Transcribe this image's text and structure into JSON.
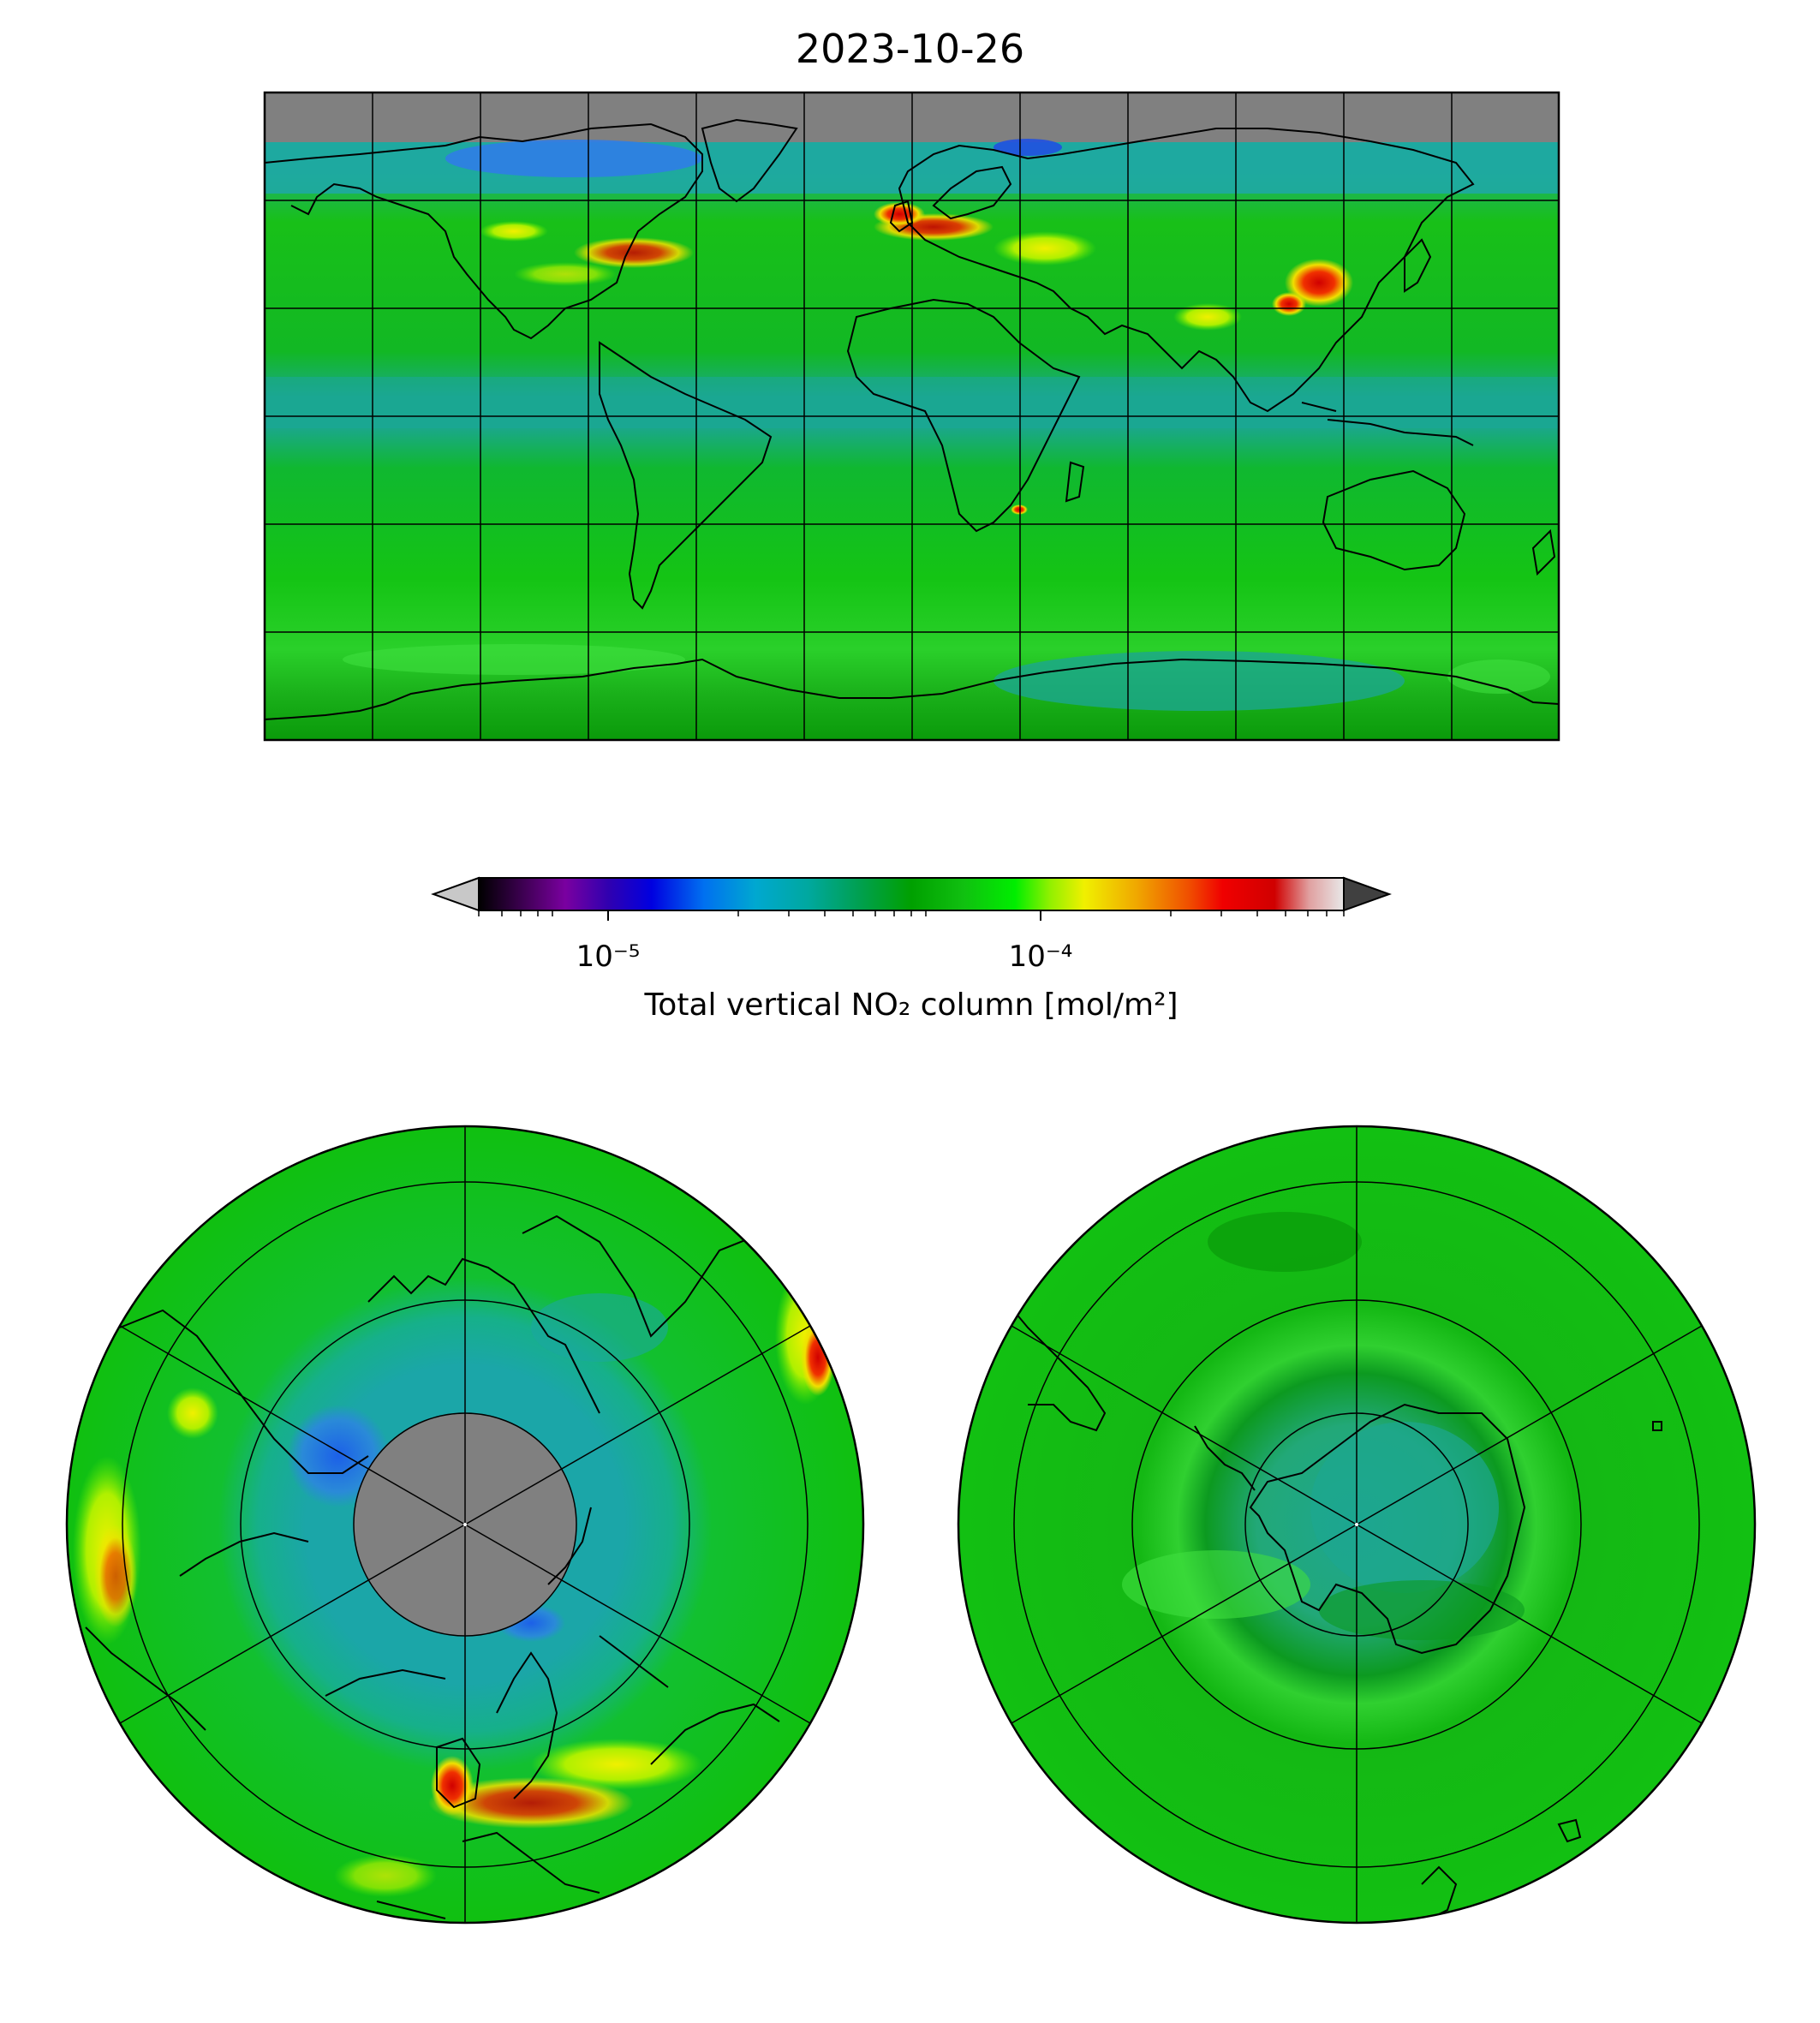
{
  "figure": {
    "title": "2023-10-26"
  },
  "colorbar": {
    "label": "Total vertical NO₂ column [mol/m²]",
    "scale": "log",
    "range": [
      5e-06,
      0.0005
    ],
    "extend": "both",
    "major_ticks": [
      {
        "value": 1e-05,
        "label": "10⁻⁵"
      },
      {
        "value": 0.0001,
        "label": "10⁻⁴"
      }
    ],
    "colormap_stops": [
      "#000000",
      "#5a006e",
      "#8000a0",
      "#2a00b0",
      "#0000e0",
      "#0060f0",
      "#00a0d0",
      "#00a8a0",
      "#00a050",
      "#00a000",
      "#20c000",
      "#00f000",
      "#90f000",
      "#f0f000",
      "#f0a000",
      "#f04000",
      "#f00000",
      "#d00000",
      "#e0a0a0",
      "#e8e8e8"
    ],
    "under_color": "#c8c8c8",
    "over_color": "#404040"
  },
  "maps": [
    {
      "name": "global",
      "projection": "equirectangular",
      "graticule_lon_step_deg": 30,
      "graticule_lat_step_deg": 30,
      "no_data_color": "#808080"
    },
    {
      "name": "north-pole",
      "projection": "north-polar-orthographic",
      "no_data_color": "#808080"
    },
    {
      "name": "south-pole",
      "projection": "south-polar-orthographic"
    }
  ],
  "colors": {
    "field_green": "#11c811",
    "field_dark_green": "#0aa50a",
    "field_teal": "#1ba3a6",
    "field_blue": "#2a7de0",
    "hotspot_yellow": "#e0f000",
    "hotspot_red": "#e00000",
    "no_data_gray": "#808080"
  }
}
